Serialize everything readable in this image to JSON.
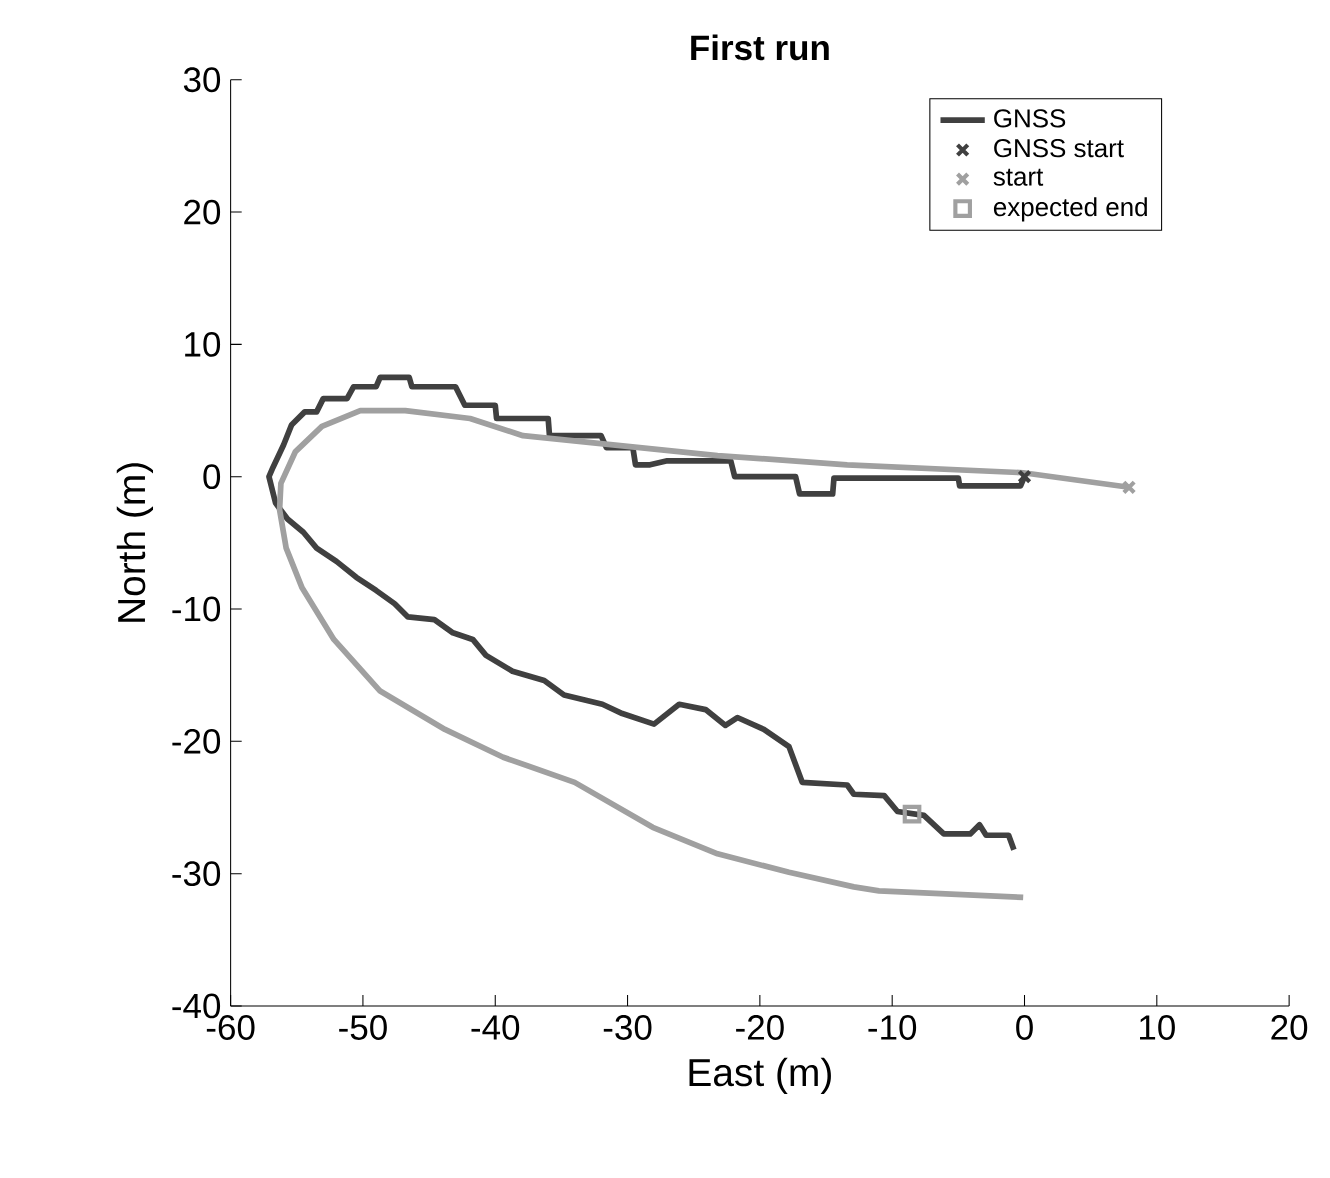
{
  "chart_data": {
    "type": "line",
    "title": "First run",
    "xlabel": "East (m)",
    "ylabel": "North (m)",
    "xlim": [
      -60,
      20
    ],
    "ylim": [
      -40,
      30
    ],
    "xticks": [
      -60,
      -50,
      -40,
      -30,
      -20,
      -10,
      0,
      10,
      20
    ],
    "yticks": [
      -40,
      -30,
      -20,
      -10,
      0,
      10,
      20,
      30
    ],
    "legend": "top right",
    "grid": false,
    "series": [
      {
        "name": "GNSS",
        "color": "#404040",
        "x": [
          0,
          -0.3,
          -4.9,
          -5,
          -9,
          -14.4,
          -14.5,
          -17,
          -17.3,
          -21.9,
          -22.2,
          -27,
          -28.3,
          -29.4,
          -29.6,
          -31.6,
          -32,
          -35.9,
          -36,
          -39.9,
          -40,
          -42.3,
          -43,
          -46.3,
          -46.5,
          -48.7,
          -49,
          -50.7,
          -51.2,
          -53,
          -53.5,
          -54.4,
          -55.4,
          -56,
          -56.8,
          -57.1,
          -56.6,
          -55.7,
          -54.5,
          -53.5,
          -52,
          -50.5,
          -49,
          -47.6,
          -46.6,
          -44.6,
          -43.2,
          -41.7,
          -40.7,
          -38.7,
          -36.3,
          -34.8,
          -31.9,
          -30.4,
          -28,
          -26.1,
          -24.1,
          -22.6,
          -21.7,
          -19.7,
          -17.8,
          -16.8,
          -13.4,
          -12.9,
          -10.6,
          -9.6,
          -7.6,
          -6.1,
          -4.1,
          -3.4,
          -2.9,
          -1.2,
          -0.8
        ],
        "values": [
          0,
          -0.7,
          -0.7,
          -0.1,
          -0.1,
          -0.1,
          -1.3,
          -1.3,
          0,
          0,
          1.2,
          1.2,
          0.9,
          0.9,
          2.2,
          2.2,
          3.1,
          3.1,
          4.4,
          4.4,
          5.4,
          5.4,
          6.8,
          6.8,
          7.5,
          7.5,
          6.8,
          6.8,
          5.9,
          5.9,
          4.9,
          4.9,
          3.9,
          2.4,
          0.7,
          0,
          -2,
          -3.2,
          -4.2,
          -5.4,
          -6.4,
          -7.6,
          -8.6,
          -9.6,
          -10.6,
          -10.8,
          -11.8,
          -12.3,
          -13.5,
          -14.7,
          -15.4,
          -16.5,
          -17.2,
          -17.9,
          -18.7,
          -17.2,
          -17.6,
          -18.8,
          -18.2,
          -19.1,
          -20.4,
          -23.1,
          -23.3,
          -24,
          -24.1,
          -25.3,
          -25.6,
          -27,
          -27,
          -26.3,
          -27.1,
          -27.1,
          -28.2
        ]
      },
      {
        "color": "#a0a0a0",
        "x": [
          7.9,
          -0.1,
          -13.4,
          -23.2,
          -37.9,
          -41.9,
          -46.8,
          -50.2,
          -53.1,
          -55.1,
          -56.2,
          -56.3,
          -55.8,
          -54.6,
          -52.2,
          -48.7,
          -43.8,
          -39.4,
          -34,
          -28.1,
          -23.2,
          -17.8,
          -12.9,
          -11,
          -0.1
        ],
        "values": [
          -0.8,
          0.3,
          0.9,
          1.6,
          3.1,
          4.4,
          5,
          5,
          3.8,
          1.9,
          -0.5,
          -2.5,
          -5.4,
          -8.4,
          -12.3,
          -16.2,
          -19.1,
          -21.2,
          -23.1,
          -26.5,
          -28.5,
          -29.9,
          -31,
          -31.3,
          -31.8
        ]
      },
      {
        "name": "GNSS start",
        "type": "scatter",
        "marker": "cross",
        "color": "#404040",
        "x": [
          0
        ],
        "values": [
          0
        ]
      },
      {
        "name": "start",
        "type": "scatter",
        "marker": "cross",
        "color": "#a0a0a0",
        "x": [
          7.9
        ],
        "values": [
          -0.8
        ]
      },
      {
        "name": "expected end",
        "type": "scatter",
        "marker": "square",
        "color": "#a0a0a0",
        "x": [
          -8.5
        ],
        "values": [
          -25.5
        ]
      }
    ]
  }
}
